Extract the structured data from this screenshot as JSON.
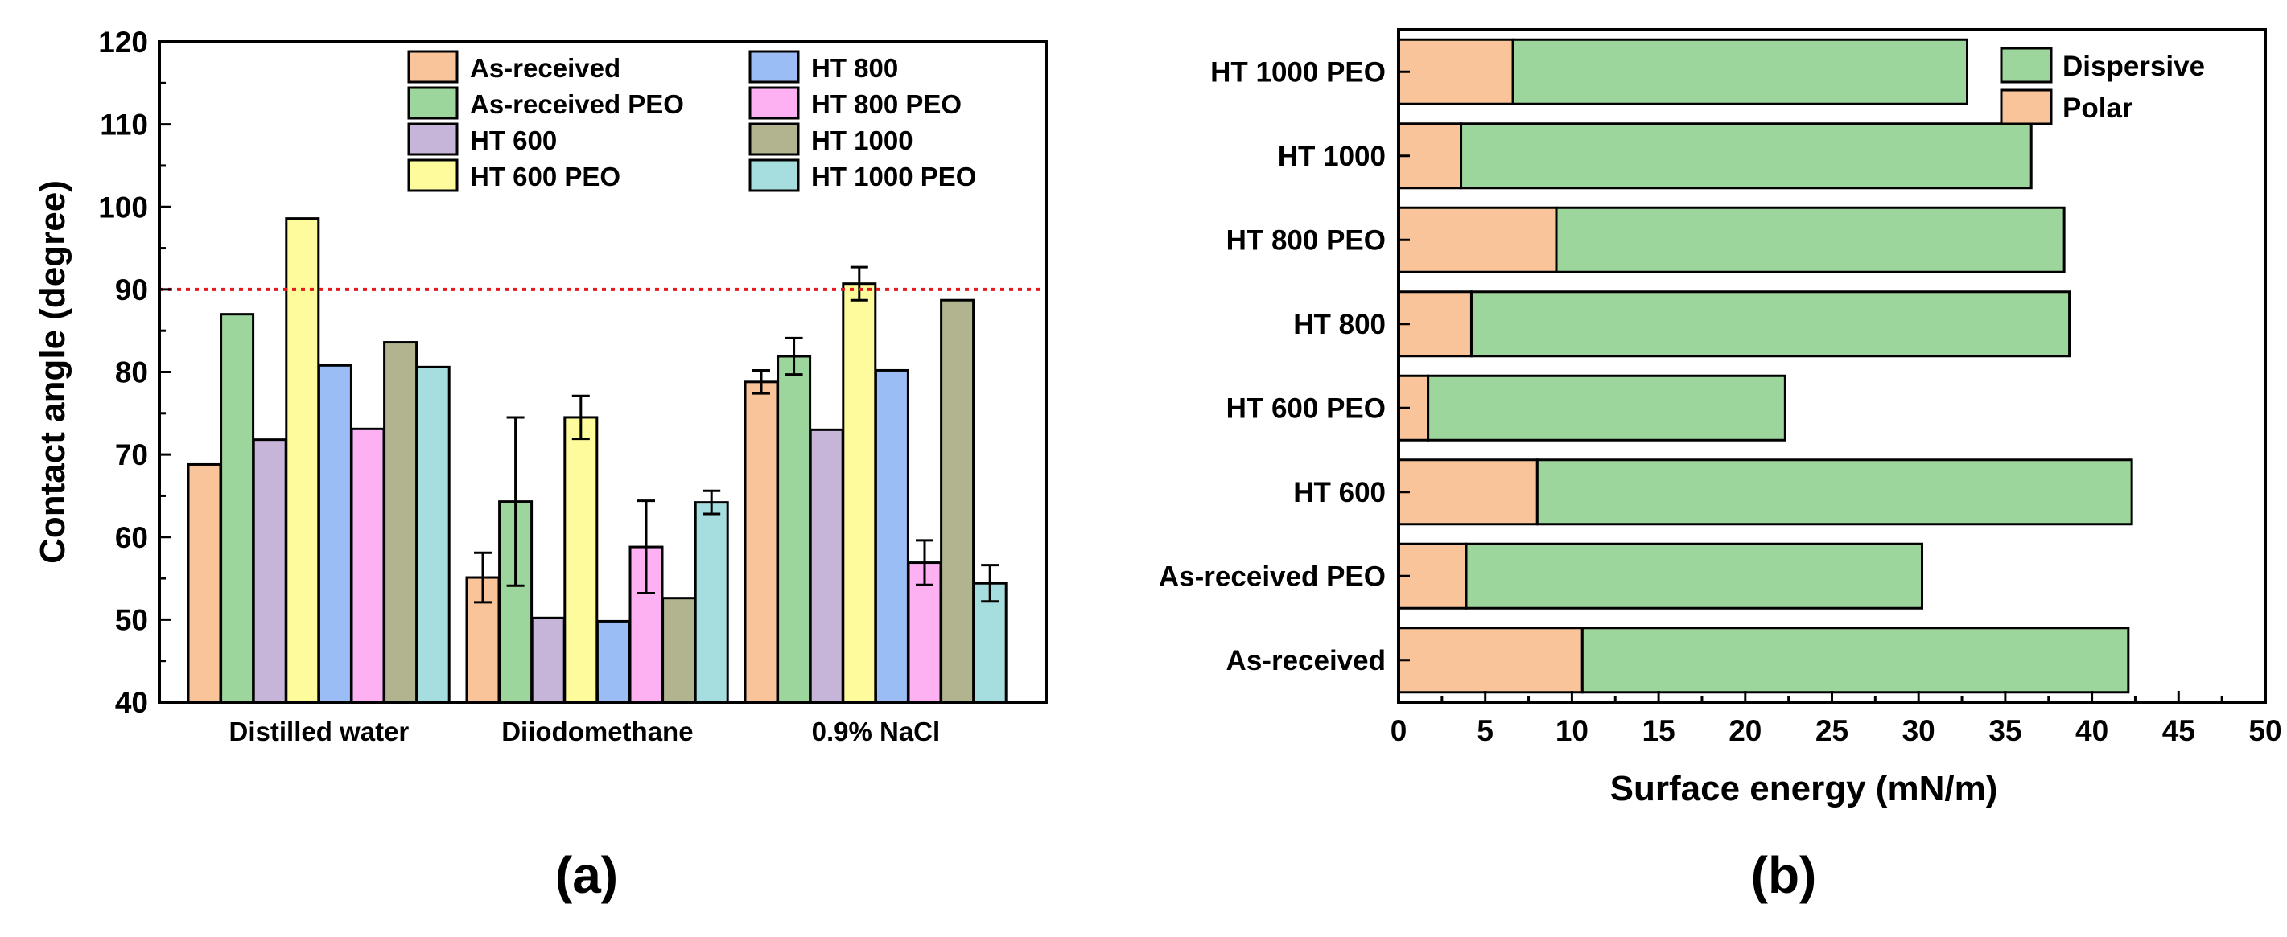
{
  "chart_data": [
    {
      "type": "bar",
      "panel_label": "(a)",
      "ylabel": "Contact angle (degree)",
      "xlabel": "",
      "ylim": [
        40,
        120
      ],
      "yticks": [
        40,
        50,
        60,
        70,
        80,
        90,
        100,
        110,
        120
      ],
      "categories": [
        "Distilled water",
        "Diiodomethane",
        "0.9% NaCl"
      ],
      "reference_line": {
        "y": 90,
        "color": "#e31a1c",
        "style": "dotted"
      },
      "legend_position": "top-right",
      "series": [
        {
          "name": "As-received",
          "color": "#f9c499",
          "values": [
            68.8,
            55.1,
            78.8
          ],
          "errors": [
            null,
            3.0,
            1.4
          ]
        },
        {
          "name": "As-received PEO",
          "color": "#9cd69c",
          "values": [
            87.0,
            64.3,
            81.9
          ],
          "errors": [
            null,
            10.2,
            2.2
          ]
        },
        {
          "name": "HT 600",
          "color": "#c7b5d9",
          "values": [
            71.8,
            50.2,
            73.0
          ],
          "errors": [
            null,
            null,
            null
          ]
        },
        {
          "name": "HT 600 PEO",
          "color": "#fdfb9b",
          "values": [
            98.6,
            74.5,
            90.7
          ],
          "errors": [
            null,
            2.6,
            2.0
          ]
        },
        {
          "name": "HT 800",
          "color": "#9bbdf5",
          "values": [
            80.8,
            49.8,
            80.2
          ],
          "errors": [
            null,
            null,
            null
          ]
        },
        {
          "name": "HT 800 PEO",
          "color": "#fdb1f3",
          "values": [
            73.1,
            58.8,
            56.9
          ],
          "errors": [
            null,
            5.6,
            2.7
          ]
        },
        {
          "name": "HT 1000",
          "color": "#b2b48f",
          "values": [
            83.6,
            52.6,
            88.7
          ],
          "errors": [
            null,
            null,
            null
          ]
        },
        {
          "name": "HT 1000 PEO",
          "color": "#a6dee0",
          "values": [
            80.6,
            64.2,
            54.4
          ],
          "errors": [
            null,
            1.4,
            2.2
          ]
        }
      ]
    },
    {
      "type": "bar",
      "orientation": "horizontal",
      "stacked": true,
      "panel_label": "(b)",
      "xlabel": "Surface energy (mN/m)",
      "ylabel": "",
      "xlim": [
        0,
        50
      ],
      "xticks": [
        0,
        5,
        10,
        15,
        20,
        25,
        30,
        35,
        40,
        45,
        50
      ],
      "categories": [
        "As-received",
        "As-received PEO",
        "HT 600",
        "HT 600 PEO",
        "HT 800",
        "HT 800 PEO",
        "HT 1000",
        "HT 1000 PEO"
      ],
      "legend_position": "top-right",
      "legend_order": [
        "Dispersive",
        "Polar"
      ],
      "series": [
        {
          "name": "Polar",
          "color": "#f9c499",
          "values": [
            10.6,
            3.9,
            8.0,
            1.7,
            4.2,
            9.1,
            3.6,
            6.6
          ]
        },
        {
          "name": "Dispersive",
          "color": "#9cd69c",
          "values": [
            31.5,
            26.3,
            34.3,
            20.6,
            34.5,
            29.3,
            32.9,
            26.2
          ]
        }
      ]
    }
  ]
}
